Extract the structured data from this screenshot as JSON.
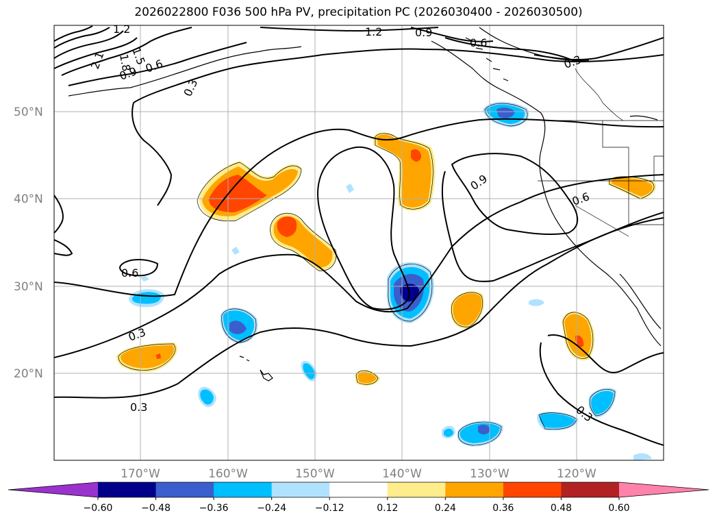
{
  "title": "2026022800 F036 500 hPa PV, precipitation PC (2026030400 - 2026030500)",
  "lat_labels": [
    "50°N",
    "40°N",
    "30°N",
    "20°N"
  ],
  "lon_labels": [
    "170°W",
    "160°W",
    "150°W",
    "140°W",
    "130°W",
    "120°W"
  ],
  "contour_labels": [
    "1.2",
    "1.5",
    "1.8",
    "2.1",
    "0.9",
    "0.6",
    "0.3",
    "1.2",
    "0.9",
    "0.6",
    "0.3",
    "0.9",
    "0.6",
    "0.6",
    "0.3",
    "0.3",
    "0.3"
  ],
  "colorbar": {
    "ticks": [
      "−0.60",
      "−0.48",
      "−0.36",
      "−0.24",
      "−0.12",
      "0.12",
      "0.24",
      "0.36",
      "0.48",
      "0.60"
    ],
    "colors": [
      "#9a32cd",
      "#00008b",
      "#3a5fcd",
      "#00bfff",
      "#b0e2ff",
      "#ffffff",
      "#ffec8b",
      "#ffa500",
      "#ff4500",
      "#b22222",
      "#ff82ab"
    ]
  }
}
